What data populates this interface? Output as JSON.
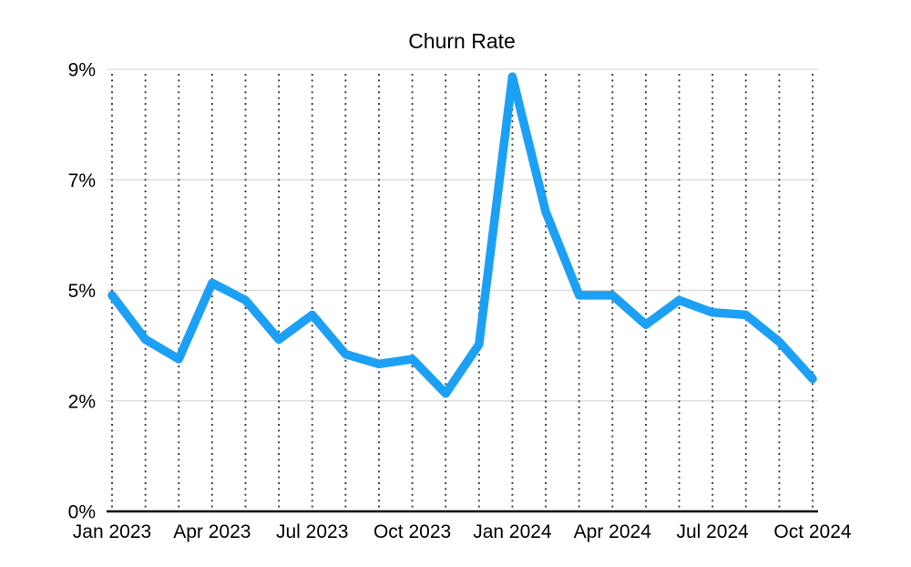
{
  "chart_data": {
    "type": "line",
    "title": "Churn Rate",
    "unit": "%",
    "x": [
      "Jan 2023",
      "Feb 2023",
      "Mar 2023",
      "Apr 2023",
      "May 2023",
      "Jun 2023",
      "Jul 2023",
      "Aug 2023",
      "Sep 2023",
      "Oct 2023",
      "Nov 2023",
      "Dec 2023",
      "Jan 2024",
      "Feb 2024",
      "Mar 2024",
      "Apr 2024",
      "May 2024",
      "Jun 2024",
      "Jul 2024",
      "Aug 2024",
      "Sep 2024",
      "Oct 2024"
    ],
    "values": [
      4.4,
      3.5,
      3.1,
      4.65,
      4.3,
      3.5,
      4.0,
      3.2,
      3.0,
      3.1,
      2.4,
      3.4,
      8.85,
      6.1,
      4.4,
      4.4,
      3.8,
      4.3,
      4.05,
      4.0,
      3.45,
      2.7
    ],
    "y_axis": {
      "min": 0,
      "max": 9,
      "tick_values": [
        0,
        2.25,
        4.5,
        6.75,
        9
      ],
      "tick_labels": [
        "0%",
        "2%",
        "5%",
        "7%",
        "9%"
      ]
    },
    "x_axis": {
      "tick_indices": [
        0,
        3,
        6,
        9,
        12,
        15,
        18,
        21
      ],
      "tick_labels": [
        "Jan 2023",
        "Apr 2023",
        "Jul 2023",
        "Oct 2023",
        "Jan 2024",
        "Apr 2024",
        "Jul 2024",
        "Oct 2024"
      ]
    },
    "legend": "none",
    "grid": {
      "horizontal_style": "solid",
      "vertical_style": "dotted-per-month"
    },
    "colors": {
      "line": "#1CA0F5",
      "horizontal_grid": "#d9d9d9",
      "vertical_grid": "#3c3c3c",
      "axis_baseline": "#000000",
      "text": "#000000",
      "background": "#ffffff"
    }
  }
}
